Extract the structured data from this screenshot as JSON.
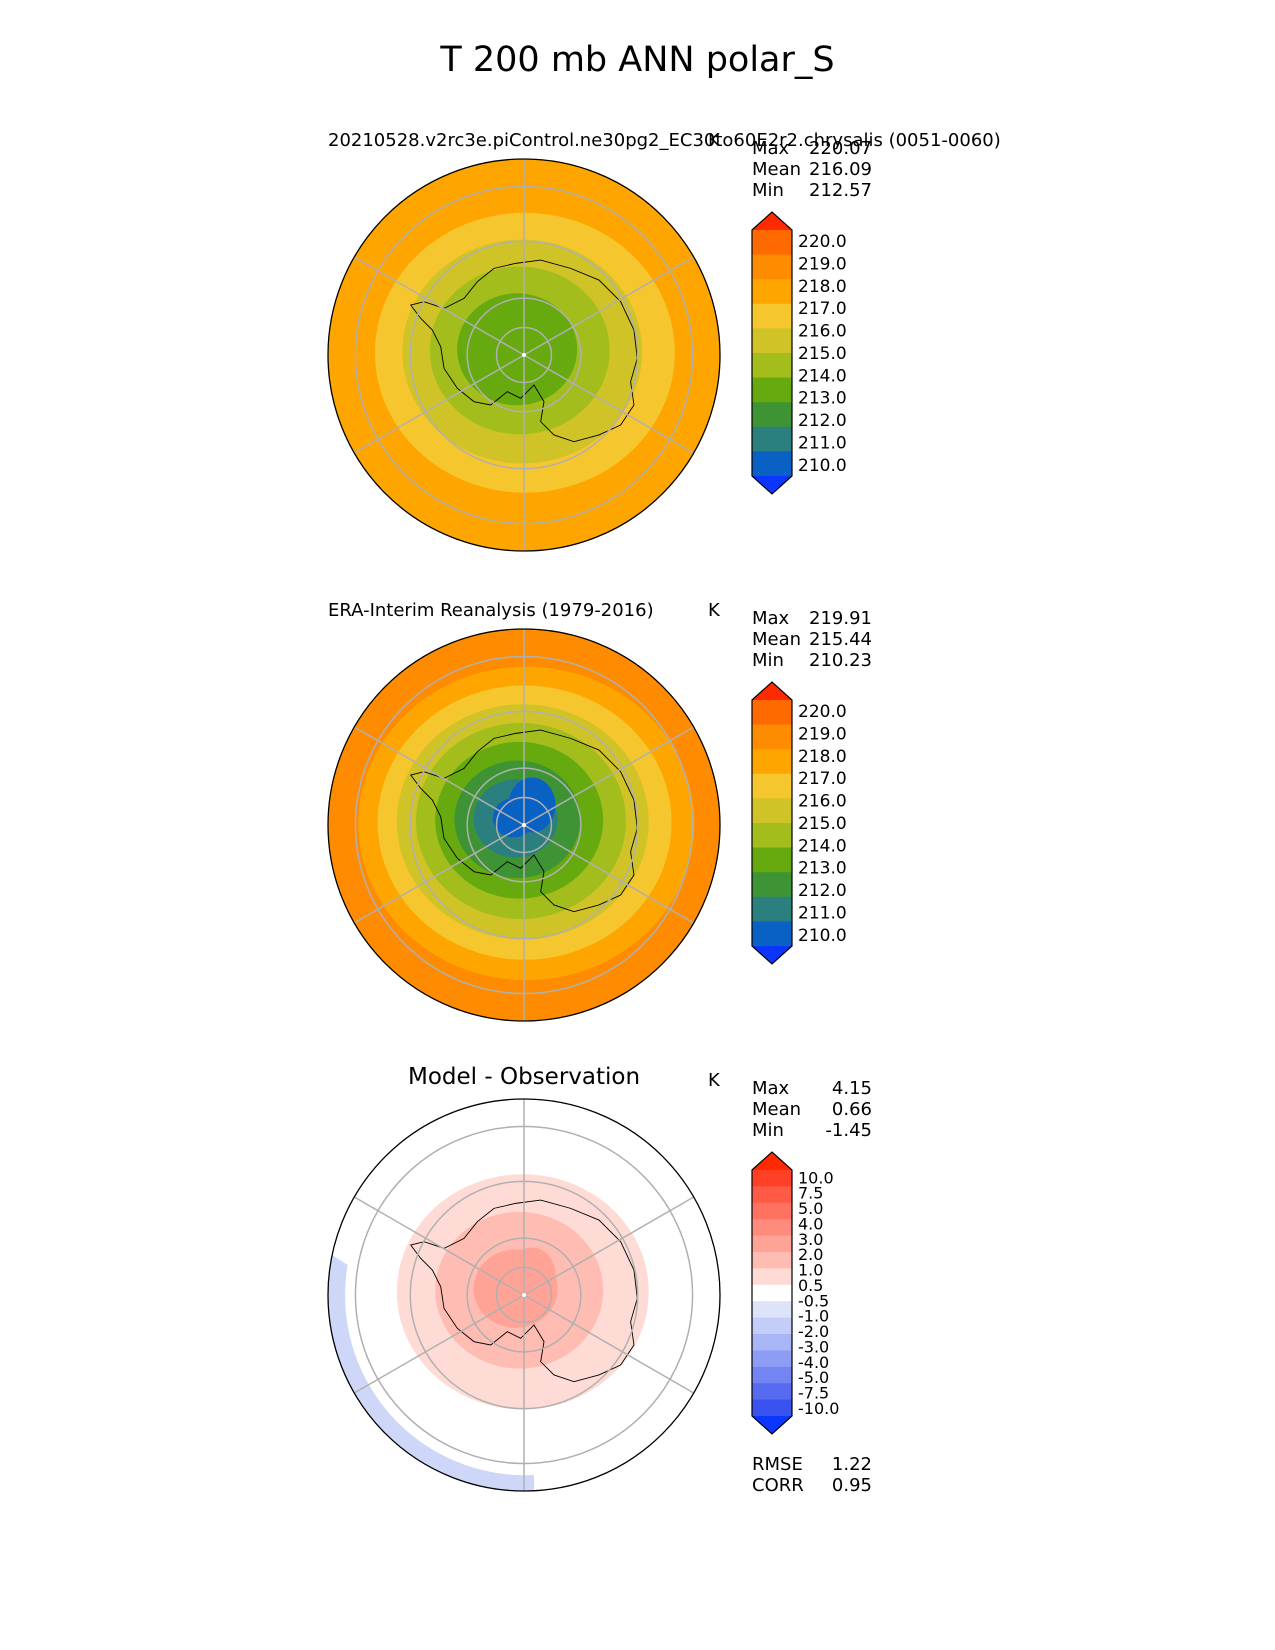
{
  "figure": {
    "title": "T 200 mb ANN polar_S"
  },
  "chart_data": [
    {
      "type": "heatmap",
      "projection": "south-polar-stereographic",
      "title": "20210528.v2rc3e.piControl.ne30pg2_EC30to60E2r2.chrysalis (0051-0060)",
      "units": "K",
      "stats": [
        {
          "label": "Max",
          "value": "220.07"
        },
        {
          "label": "Mean",
          "value": "216.09"
        },
        {
          "label": "Min",
          "value": "212.57"
        }
      ],
      "colorbar": {
        "levels": [
          "220.0",
          "219.0",
          "218.0",
          "217.0",
          "216.0",
          "215.0",
          "214.0",
          "213.0",
          "212.0",
          "211.0",
          "210.0"
        ],
        "colors": [
          "#ff2a00",
          "#ff6a00",
          "#ff8c00",
          "#ffa500",
          "#f6c62e",
          "#d0c327",
          "#a2bd1c",
          "#66aa10",
          "#3e9434",
          "#2b7f7f",
          "#0a61c4",
          "#0b36ff"
        ]
      },
      "field": {
        "center_color_index": 7,
        "rings": [
          7,
          7,
          6,
          5,
          4,
          3
        ]
      }
    },
    {
      "type": "heatmap",
      "projection": "south-polar-stereographic",
      "title": "ERA-Interim Reanalysis (1979-2016)",
      "units": "K",
      "stats": [
        {
          "label": "Max",
          "value": "219.91"
        },
        {
          "label": "Mean",
          "value": "215.44"
        },
        {
          "label": "Min",
          "value": "210.23"
        }
      ],
      "colorbar": {
        "levels": [
          "220.0",
          "219.0",
          "218.0",
          "217.0",
          "216.0",
          "215.0",
          "214.0",
          "213.0",
          "212.0",
          "211.0",
          "210.0"
        ],
        "colors": [
          "#ff2a00",
          "#ff6a00",
          "#ff8c00",
          "#ffa500",
          "#f6c62e",
          "#d0c327",
          "#a2bd1c",
          "#66aa10",
          "#3e9434",
          "#2b7f7f",
          "#0a61c4",
          "#0b36ff"
        ]
      },
      "field": {
        "center_color_index": 10,
        "rings": [
          10,
          9,
          8,
          7,
          6,
          5,
          4,
          3,
          2
        ]
      }
    },
    {
      "type": "heatmap",
      "projection": "south-polar-stereographic",
      "title": "Model - Observation",
      "units": "K",
      "stats": [
        {
          "label": "Max",
          "value": "4.15"
        },
        {
          "label": "Mean",
          "value": "0.66"
        },
        {
          "label": "Min",
          "value": "-1.45"
        }
      ],
      "colorbar": {
        "levels": [
          "10.0",
          "7.5",
          "5.0",
          "4.0",
          "3.0",
          "2.0",
          "1.0",
          "0.5",
          "-0.5",
          "-1.0",
          "-2.0",
          "-3.0",
          "-4.0",
          "-5.0",
          "-7.5",
          "-10.0"
        ],
        "colors": [
          "#ff2a00",
          "#ff3f26",
          "#ff5a45",
          "#ff7260",
          "#ff8b7c",
          "#ffa396",
          "#ffbcb2",
          "#ffdbd5",
          "#ffffff",
          "#dde4fa",
          "#c3cdf8",
          "#a9b6f6",
          "#8d9df4",
          "#7385f2",
          "#566bf0",
          "#3a52ef",
          "#0b36ff"
        ]
      },
      "field": {
        "center_color_index": 5,
        "rings": [
          5,
          6,
          7,
          8
        ]
      },
      "metrics": [
        {
          "label": "RMSE",
          "value": "1.22"
        },
        {
          "label": "CORR",
          "value": "0.95"
        }
      ]
    }
  ]
}
